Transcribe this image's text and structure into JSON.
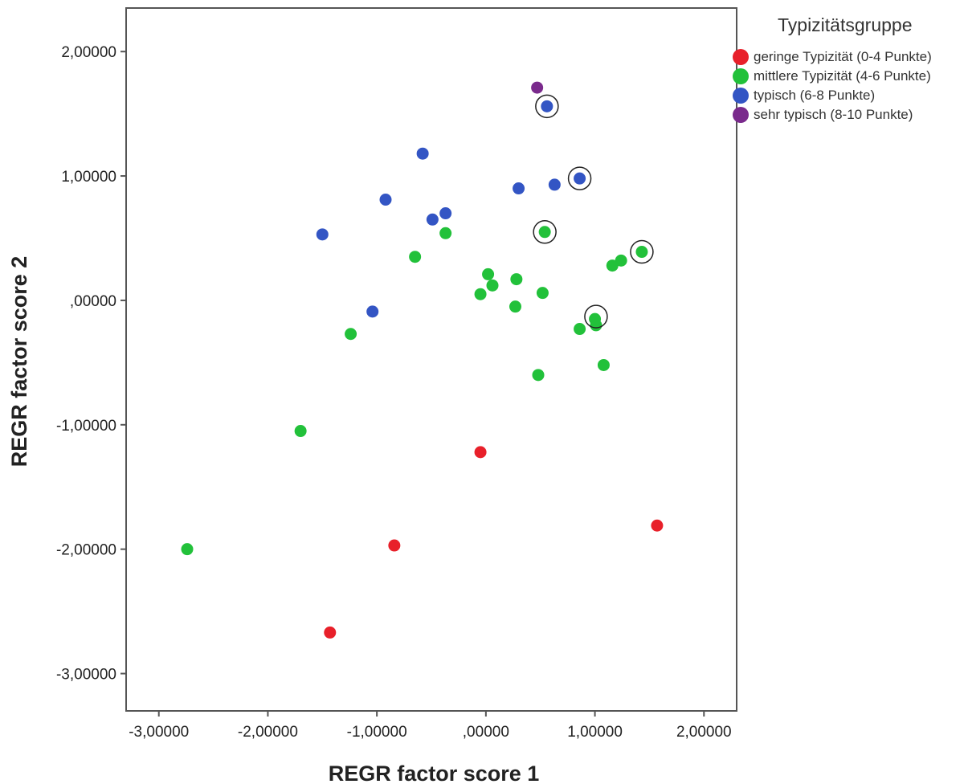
{
  "chart_data": {
    "type": "scatter",
    "xlabel": "REGR factor score   1",
    "ylabel": "REGR factor score   2",
    "xlim": [
      -3.3,
      2.3
    ],
    "ylim": [
      -3.3,
      2.35
    ],
    "x_ticks": [
      -3,
      -2,
      -1,
      0,
      1,
      2
    ],
    "y_ticks": [
      -3,
      -2,
      -1,
      0,
      1,
      2
    ],
    "x_tick_labels": [
      "-3,00000",
      "-2,00000",
      "-1,00000",
      ",00000",
      "1,00000",
      "2,00000"
    ],
    "y_tick_labels": [
      "-3,00000",
      "-2,00000",
      "-1,00000",
      ",00000",
      "1,00000",
      "2,00000"
    ],
    "grid": false,
    "legend_title": "Typizitätsgruppe",
    "legend_position": "right",
    "series": [
      {
        "name": "geringe Typizität (0-4 Punkte)",
        "color": "#e8202a",
        "points": [
          [
            -0.05,
            -1.22
          ],
          [
            -0.84,
            -1.97
          ],
          [
            1.57,
            -1.81
          ],
          [
            -1.43,
            -2.67
          ]
        ]
      },
      {
        "name": "mittlere Typizität (4-6 Punkte)",
        "color": "#22c13a",
        "points": [
          [
            -0.37,
            0.54
          ],
          [
            0.54,
            0.55
          ],
          [
            -0.65,
            0.35
          ],
          [
            0.02,
            0.21
          ],
          [
            0.06,
            0.12
          ],
          [
            0.28,
            0.17
          ],
          [
            -0.05,
            0.05
          ],
          [
            0.52,
            0.06
          ],
          [
            1.43,
            0.39
          ],
          [
            1.24,
            0.32
          ],
          [
            1.16,
            0.28
          ],
          [
            0.27,
            -0.05
          ],
          [
            1.0,
            -0.15
          ],
          [
            1.01,
            -0.2
          ],
          [
            0.86,
            -0.23
          ],
          [
            -1.24,
            -0.27
          ],
          [
            0.48,
            -0.6
          ],
          [
            1.08,
            -0.52
          ],
          [
            -1.7,
            -1.05
          ],
          [
            -2.74,
            -2.0
          ]
        ]
      },
      {
        "name": "typisch (6-8 Punkte)",
        "color": "#3355c4",
        "points": [
          [
            0.56,
            1.56
          ],
          [
            -0.58,
            1.18
          ],
          [
            0.86,
            0.98
          ],
          [
            0.63,
            0.93
          ],
          [
            0.3,
            0.9
          ],
          [
            -0.92,
            0.81
          ],
          [
            -0.37,
            0.7
          ],
          [
            -0.49,
            0.65
          ],
          [
            -1.5,
            0.53
          ],
          [
            -1.04,
            -0.09
          ]
        ]
      },
      {
        "name": "sehr typisch (8-10 Punkte)",
        "color": "#7a2a8c",
        "points": [
          [
            0.47,
            1.71
          ]
        ]
      }
    ],
    "annotations": [
      {
        "type": "circle-marker",
        "at": [
          0.56,
          1.56
        ]
      },
      {
        "type": "circle-marker",
        "at": [
          0.86,
          0.98
        ]
      },
      {
        "type": "circle-marker",
        "at": [
          0.54,
          0.55
        ]
      },
      {
        "type": "circle-marker",
        "at": [
          1.43,
          0.39
        ]
      },
      {
        "type": "circle-marker",
        "at": [
          1.01,
          -0.13
        ]
      }
    ]
  }
}
